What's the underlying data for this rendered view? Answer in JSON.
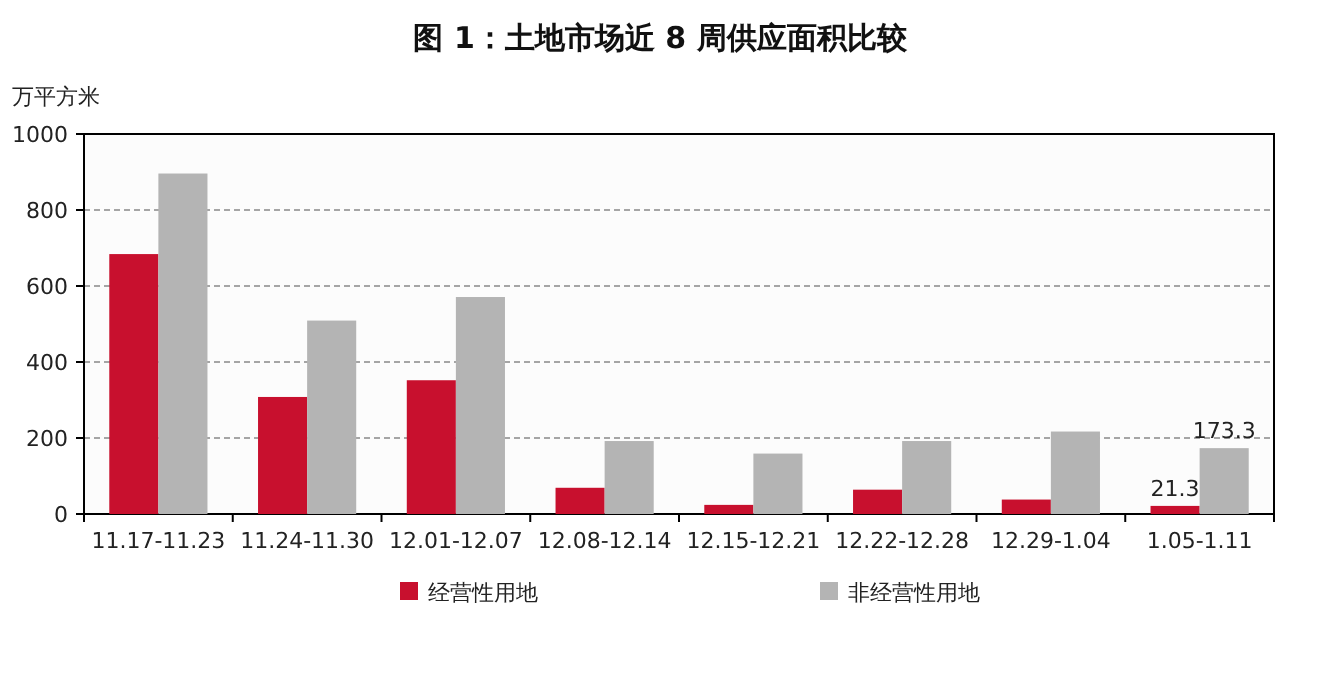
{
  "chart_data": {
    "type": "bar",
    "title": "图 1：土地市场近 8 周供应面积比较",
    "ylabel": "万平方米",
    "categories": [
      "11.17-11.23",
      "11.24-11.30",
      "12.01-12.07",
      "12.08-12.14",
      "12.15-12.21",
      "12.22-12.28",
      "12.29-1.04",
      "1.05-1.11"
    ],
    "series": [
      {
        "name": "经营性用地",
        "color": "#c8102e",
        "values": [
          684,
          308,
          352,
          69,
          24,
          64,
          38,
          21.3
        ],
        "value_labels": [
          null,
          null,
          null,
          null,
          null,
          null,
          null,
          "21.3"
        ]
      },
      {
        "name": "非经营性用地",
        "color": "#b4b4b4",
        "values": [
          896,
          509,
          571,
          192,
          159,
          192,
          217,
          173.3
        ],
        "value_labels": [
          null,
          null,
          null,
          null,
          null,
          null,
          null,
          "173.3"
        ]
      }
    ],
    "ylim": [
      0,
      1000
    ],
    "yticks": [
      0,
      200,
      400,
      600,
      800,
      1000
    ],
    "grid": "y",
    "legend": "bottom"
  }
}
